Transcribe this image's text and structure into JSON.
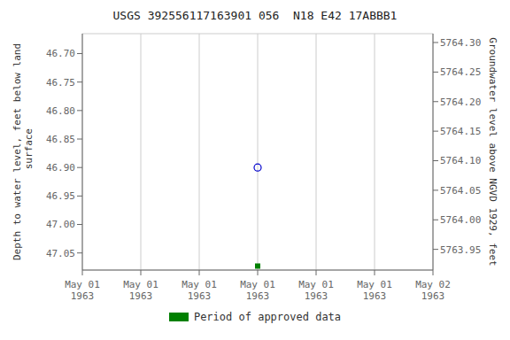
{
  "chart_data": {
    "type": "scatter",
    "title": "USGS 392556117163901 056  N18 E42 17ABBB1",
    "categories": [
      "May 01\n1963",
      "May 01\n1963",
      "May 01\n1963",
      "May 01\n1963",
      "May 01\n1963",
      "May 01\n1963",
      "May 02\n1963"
    ],
    "series": [
      {
        "color": "#0000cc",
        "marker": "circle",
        "values": [
          null,
          null,
          null,
          46.9,
          null,
          null,
          null
        ]
      },
      {
        "name": "Period of approved data",
        "color": "#008000",
        "marker": "square",
        "values": [
          null,
          null,
          null,
          47.073,
          null,
          null,
          null
        ]
      }
    ],
    "ylabel": "Depth to water level, feet below land\n surface",
    "y2label": "Groundwater level above NGVD 1929, feet",
    "ylim": [
      47.08,
      46.665
    ],
    "yticks": [
      {
        "value": 46.7,
        "label": "46.70"
      },
      46.75,
      {
        "value": 46.8,
        "label": "46.80"
      },
      46.85,
      {
        "value": 46.9,
        "label": "46.90"
      },
      46.95,
      {
        "value": 47.0,
        "label": "47.00"
      },
      47.05
    ],
    "y2lim": [
      5763.915,
      5764.315
    ],
    "y2ticks": [
      {
        "value": 5764.3,
        "label": "5764.30"
      },
      5764.25,
      {
        "value": 5764.2,
        "label": "5764.20"
      },
      5764.15,
      {
        "value": 5764.1,
        "label": "5764.10"
      },
      5764.05,
      {
        "value": 5764.0,
        "label": "5764.00"
      },
      5763.95
    ],
    "grid": true,
    "legend": "bottom"
  }
}
